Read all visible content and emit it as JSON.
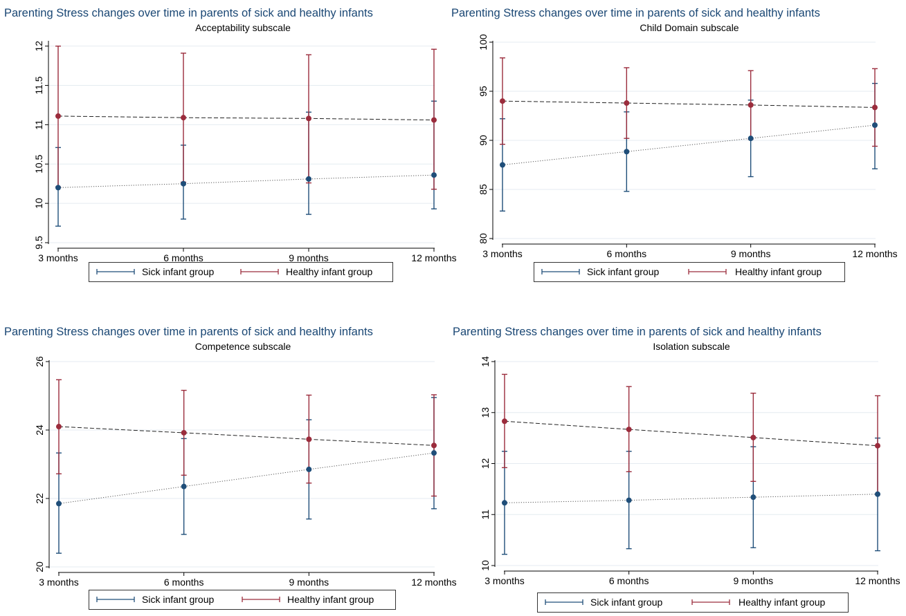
{
  "chart_data": [
    {
      "type": "line",
      "title": "Parenting Stress changes over time in parents of sick and healthy infants",
      "subtitle": "Acceptability subscale",
      "categories": [
        "3 months",
        "6 months",
        "9 months",
        "12 months"
      ],
      "yticks": [
        "9.5",
        "10",
        "10.5",
        "11",
        "11.5",
        "12"
      ],
      "ylim": [
        9.5,
        12.05
      ],
      "grid": true,
      "legend_position": "bottom",
      "series": [
        {
          "name": "Sick infant group",
          "color": "#1f4e79",
          "line": "dotted",
          "values": [
            10.2,
            10.25,
            10.31,
            10.36
          ],
          "lower": [
            9.71,
            9.8,
            9.86,
            9.93
          ],
          "upper": [
            10.71,
            10.74,
            11.16,
            11.3
          ]
        },
        {
          "name": "Healthy infant group",
          "color": "#9b2c3c",
          "line": "dashed",
          "values": [
            11.11,
            11.09,
            11.08,
            11.06
          ],
          "lower": [
            10.21,
            10.27,
            10.26,
            10.18
          ],
          "upper": [
            12.0,
            11.91,
            11.89,
            11.96
          ]
        }
      ]
    },
    {
      "type": "line",
      "title": "Parenting Stress changes over time in parents of sick and healthy infants",
      "subtitle": "Child Domain subscale",
      "categories": [
        "3 months",
        "6 months",
        "9 months",
        "12 months"
      ],
      "yticks": [
        "80",
        "85",
        "90",
        "95",
        "100"
      ],
      "ylim": [
        80,
        100
      ],
      "grid": true,
      "legend_position": "bottom",
      "series": [
        {
          "name": "Sick infant group",
          "color": "#1f4e79",
          "line": "dotted",
          "values": [
            87.5,
            88.85,
            90.2,
            91.55
          ],
          "lower": [
            82.8,
            84.8,
            86.3,
            87.1
          ],
          "upper": [
            92.2,
            92.9,
            94.1,
            95.8
          ]
        },
        {
          "name": "Healthy infant group",
          "color": "#9b2c3c",
          "line": "dashed",
          "values": [
            94.0,
            93.8,
            93.6,
            93.35
          ],
          "lower": [
            89.6,
            90.2,
            90.1,
            89.4
          ],
          "upper": [
            98.4,
            97.4,
            97.1,
            97.3
          ]
        }
      ]
    },
    {
      "type": "line",
      "title": "Parenting Stress changes over time in parents of sick and healthy infants",
      "subtitle": "Competence subscale",
      "categories": [
        "3 months",
        "6 months",
        "9 months",
        "12 months"
      ],
      "yticks": [
        "20",
        "22",
        "24",
        "26"
      ],
      "ylim": [
        20,
        26
      ],
      "grid": true,
      "legend_position": "bottom",
      "series": [
        {
          "name": "Sick infant group",
          "color": "#1f4e79",
          "line": "dotted",
          "values": [
            21.85,
            22.35,
            22.85,
            23.33
          ],
          "lower": [
            20.4,
            20.95,
            21.4,
            21.7
          ],
          "upper": [
            23.33,
            23.75,
            24.3,
            24.95
          ]
        },
        {
          "name": "Healthy infant group",
          "color": "#9b2c3c",
          "line": "dashed",
          "values": [
            24.1,
            23.92,
            23.73,
            23.55
          ],
          "lower": [
            22.72,
            22.68,
            22.45,
            22.07
          ],
          "upper": [
            25.47,
            25.16,
            25.02,
            25.03
          ]
        }
      ]
    },
    {
      "type": "line",
      "title": "Parenting Stress changes over time in parents of sick and healthy infants",
      "subtitle": "Isolation subscale",
      "categories": [
        "3 months",
        "6 months",
        "9 months",
        "12 months"
      ],
      "yticks": [
        "10",
        "11",
        "12",
        "13",
        "14"
      ],
      "ylim": [
        10,
        14
      ],
      "grid": true,
      "legend_position": "bottom",
      "series": [
        {
          "name": "Sick infant group",
          "color": "#1f4e79",
          "line": "dotted",
          "values": [
            11.23,
            11.28,
            11.34,
            11.4
          ],
          "lower": [
            10.22,
            10.33,
            10.35,
            10.29
          ],
          "upper": [
            12.24,
            12.24,
            12.33,
            12.5
          ]
        },
        {
          "name": "Healthy infant group",
          "color": "#9b2c3c",
          "line": "dashed",
          "values": [
            12.83,
            12.67,
            12.51,
            12.35
          ],
          "lower": [
            11.92,
            11.84,
            11.65,
            11.4
          ],
          "upper": [
            13.75,
            13.51,
            13.38,
            13.33
          ]
        }
      ]
    }
  ]
}
